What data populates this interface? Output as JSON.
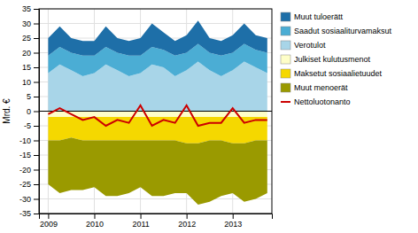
{
  "chart_data": {
    "type": "area",
    "stacked": true,
    "y_label": "Mrd. €",
    "x": [
      2009.0,
      2009.25,
      2009.5,
      2009.75,
      2010.0,
      2010.25,
      2010.5,
      2010.75,
      2011.0,
      2011.25,
      2011.5,
      2011.75,
      2012.0,
      2012.25,
      2012.5,
      2012.75,
      2013.0,
      2013.25,
      2013.5,
      2013.75
    ],
    "xlim": [
      2008.8,
      2013.85
    ],
    "xticks": [
      2009,
      2010,
      2011,
      2012,
      2013
    ],
    "ylim": [
      -35,
      35
    ],
    "yticks": [
      -35,
      -30,
      -25,
      -20,
      -15,
      -10,
      -5,
      0,
      5,
      10,
      15,
      20,
      25,
      30,
      35
    ],
    "grid": true,
    "legend": "right",
    "series": [
      {
        "name": "Verotulot",
        "color": "#a8d5e8",
        "values": [
          13,
          16,
          14,
          12,
          13,
          16,
          14,
          12,
          13,
          16,
          15,
          12,
          14,
          17,
          14,
          12,
          14,
          17,
          15,
          13
        ]
      },
      {
        "name": "Saadut sosiaaliturvamaksut",
        "color": "#4badd4",
        "values": [
          6,
          6,
          6,
          7,
          6,
          6,
          6,
          7,
          6,
          6,
          6,
          7,
          6,
          6,
          6,
          7,
          6,
          6,
          6,
          7
        ]
      },
      {
        "name": "Muut tuloerätt",
        "color": "#1e6fa8",
        "values": [
          6,
          7,
          5,
          5,
          5,
          7,
          5,
          5,
          6,
          8,
          6,
          5,
          6,
          8,
          5,
          5,
          6,
          7,
          5,
          5
        ]
      },
      {
        "name": "Julkiset kulutusmenot",
        "color": "#fefec8",
        "values": [
          -2,
          -2,
          -2,
          -2,
          -2,
          -2,
          -2,
          -2,
          -2,
          -2,
          -2,
          -2,
          -2,
          -2,
          -2,
          -2,
          -2,
          -2,
          -2,
          -2
        ]
      },
      {
        "name": "Maksetut sosiaalietuudet",
        "color": "#f5d800",
        "values": [
          -8,
          -8,
          -7,
          -8,
          -8,
          -8,
          -8,
          -8,
          -8,
          -8,
          -8,
          -8,
          -9,
          -9,
          -8,
          -8,
          -9,
          -9,
          -8,
          -8
        ]
      },
      {
        "name": "Muut menoerät",
        "color": "#9a9a00",
        "values": [
          -15,
          -18,
          -18,
          -17,
          -16,
          -19,
          -19,
          -18,
          -16,
          -19,
          -19,
          -18,
          -17,
          -21,
          -21,
          -19,
          -17,
          -20,
          -20,
          -18
        ]
      },
      {
        "name": "Nettoluotonanto",
        "type": "line",
        "color": "#cc0000",
        "values": [
          -1,
          1,
          -1,
          -3,
          -2,
          -5,
          -3,
          -4,
          2,
          -5,
          -3,
          -4,
          2,
          -5,
          -4,
          -4,
          1,
          -4,
          -3,
          -3
        ]
      }
    ]
  }
}
